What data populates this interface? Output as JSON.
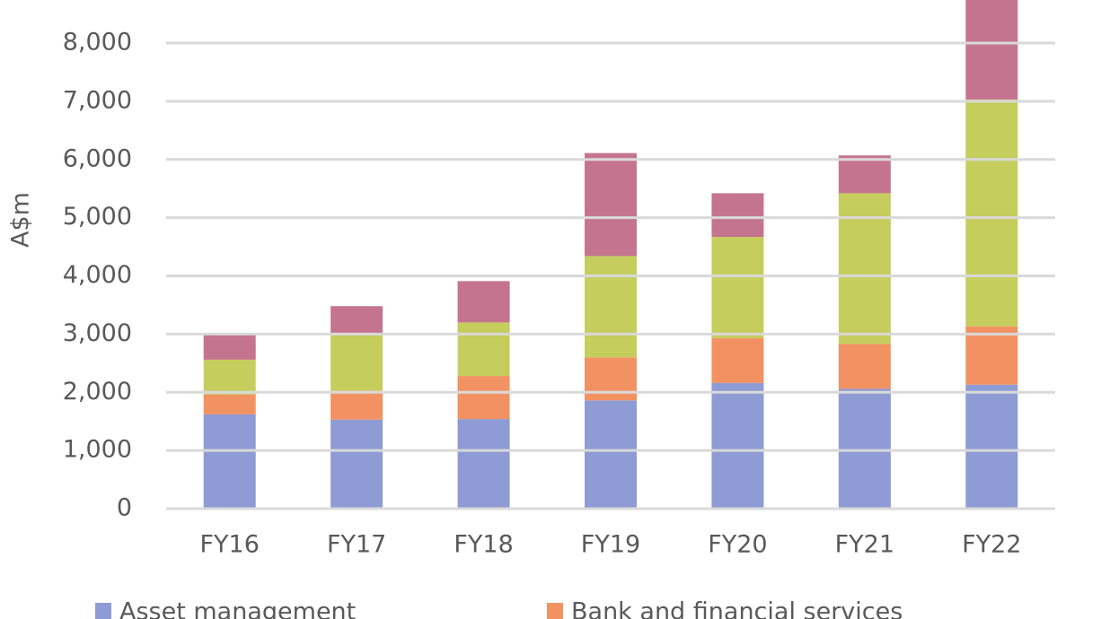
{
  "chart_data": {
    "type": "stacked_bar",
    "y_label": "A$m",
    "categories": [
      "FY16",
      "FY17",
      "FY18",
      "FY19",
      "FY20",
      "FY21",
      "FY22"
    ],
    "series": [
      {
        "name": "Asset management",
        "color": "#8e9bd4",
        "values": [
          1620,
          1530,
          1540,
          1860,
          2160,
          2060,
          2130
        ]
      },
      {
        "name": "Bank and financial services",
        "color": "#f29263",
        "values": [
          340,
          500,
          740,
          740,
          770,
          770,
          1000
        ]
      },
      {
        "color": "#c5cd5d",
        "values": [
          600,
          970,
          920,
          1740,
          1740,
          2590,
          3900
        ]
      },
      {
        "color": "#c5748f",
        "values": [
          450,
          480,
          710,
          1770,
          750,
          650,
          1900
        ]
      }
    ],
    "ylim": [
      0,
      8740
    ],
    "yticks": [
      0,
      {
        "value": 1000,
        "label": "1,000"
      },
      {
        "value": 2000,
        "label": "2,000"
      },
      {
        "value": 3000,
        "label": "3,000"
      },
      {
        "value": 4000,
        "label": "4,000"
      },
      {
        "value": 5000,
        "label": "5,000"
      },
      {
        "value": 6000,
        "label": "6,000"
      },
      {
        "value": 7000,
        "label": "7,000"
      },
      {
        "value": 8000,
        "label": "8,000"
      }
    ],
    "grid": true
  }
}
